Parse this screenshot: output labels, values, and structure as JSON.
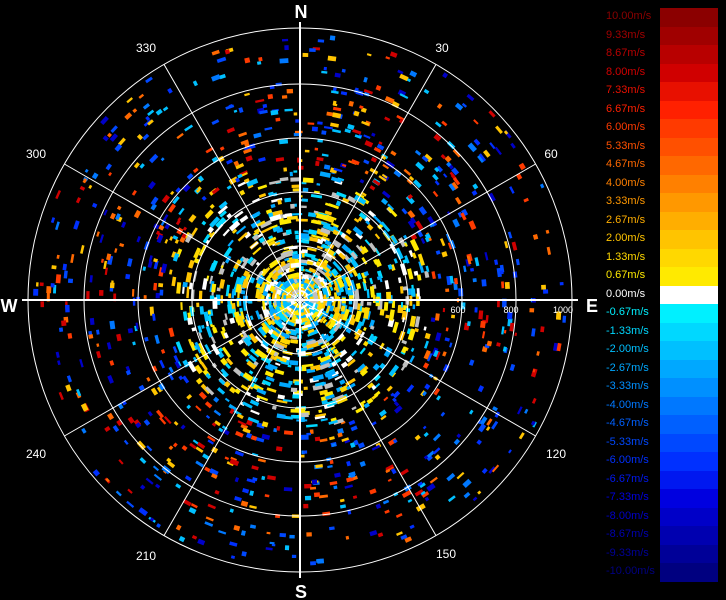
{
  "radar": {
    "cardinals": {
      "north": "N",
      "south": "S",
      "east": "E",
      "west": "W"
    },
    "bearings": [
      "30",
      "60",
      "120",
      "150",
      "210",
      "240",
      "300",
      "330"
    ],
    "range_labels": [
      "600",
      "800",
      "1000"
    ]
  },
  "legend": {
    "entries": [
      {
        "label": "10.00m/s",
        "color": "#8b0000"
      },
      {
        "label": "9.33m/s",
        "color": "#a00000"
      },
      {
        "label": "8.67m/s",
        "color": "#b80000"
      },
      {
        "label": "8.00m/s",
        "color": "#d00000"
      },
      {
        "label": "7.33m/s",
        "color": "#e81000"
      },
      {
        "label": "6.67m/s",
        "color": "#ff2000"
      },
      {
        "label": "6.00m/s",
        "color": "#ff3a00"
      },
      {
        "label": "5.33m/s",
        "color": "#ff5000"
      },
      {
        "label": "4.67m/s",
        "color": "#ff6800"
      },
      {
        "label": "4.00m/s",
        "color": "#ff8000"
      },
      {
        "label": "3.33m/s",
        "color": "#ff9800"
      },
      {
        "label": "2.67m/s",
        "color": "#ffae00"
      },
      {
        "label": "2.00m/s",
        "color": "#ffc400"
      },
      {
        "label": "1.33m/s",
        "color": "#ffd800"
      },
      {
        "label": "0.67m/s",
        "color": "#ffea00"
      },
      {
        "label": "0.00m/s",
        "color": "#ffffff"
      },
      {
        "label": "-0.67m/s",
        "color": "#00f0ff"
      },
      {
        "label": "-1.33m/s",
        "color": "#00d8ff"
      },
      {
        "label": "-2.00m/s",
        "color": "#00c0ff"
      },
      {
        "label": "-2.67m/s",
        "color": "#00a8ff"
      },
      {
        "label": "-3.33m/s",
        "color": "#0090ff"
      },
      {
        "label": "-4.00m/s",
        "color": "#0078ff"
      },
      {
        "label": "-4.67m/s",
        "color": "#0060ff"
      },
      {
        "label": "-5.33m/s",
        "color": "#0048ff"
      },
      {
        "label": "-6.00m/s",
        "color": "#0030ff"
      },
      {
        "label": "-6.67m/s",
        "color": "#0018f0"
      },
      {
        "label": "-7.33m/s",
        "color": "#0000e0"
      },
      {
        "label": "-8.00m/s",
        "color": "#0000c8"
      },
      {
        "label": "-8.67m/s",
        "color": "#0000b0"
      },
      {
        "label": "-9.33m/s",
        "color": "#000098"
      },
      {
        "label": "-10.00m/s",
        "color": "#000080"
      }
    ]
  }
}
